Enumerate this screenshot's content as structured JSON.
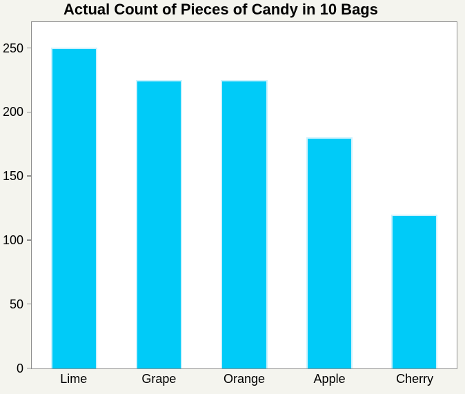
{
  "title": "Actual Count of Pieces of Candy in 10 Bags",
  "colors": {
    "background": "#f4f4ee",
    "plot_background": "#ffffff",
    "frame": "#8c8c8c",
    "bar_fill": "#00cbf8",
    "bar_edge": "#cdf2fd",
    "text": "#000000"
  },
  "chart_data": {
    "type": "bar",
    "categories": [
      "Lime",
      "Grape",
      "Orange",
      "Apple",
      "Cherry"
    ],
    "values": [
      250,
      225,
      225,
      180,
      120
    ],
    "title": "Actual Count of Pieces of Candy in 10 Bags",
    "xlabel": "",
    "ylabel": "",
    "ylim": [
      0,
      270
    ],
    "yticks": [
      0,
      50,
      100,
      150,
      200,
      250
    ],
    "grid": false,
    "legend": false
  }
}
